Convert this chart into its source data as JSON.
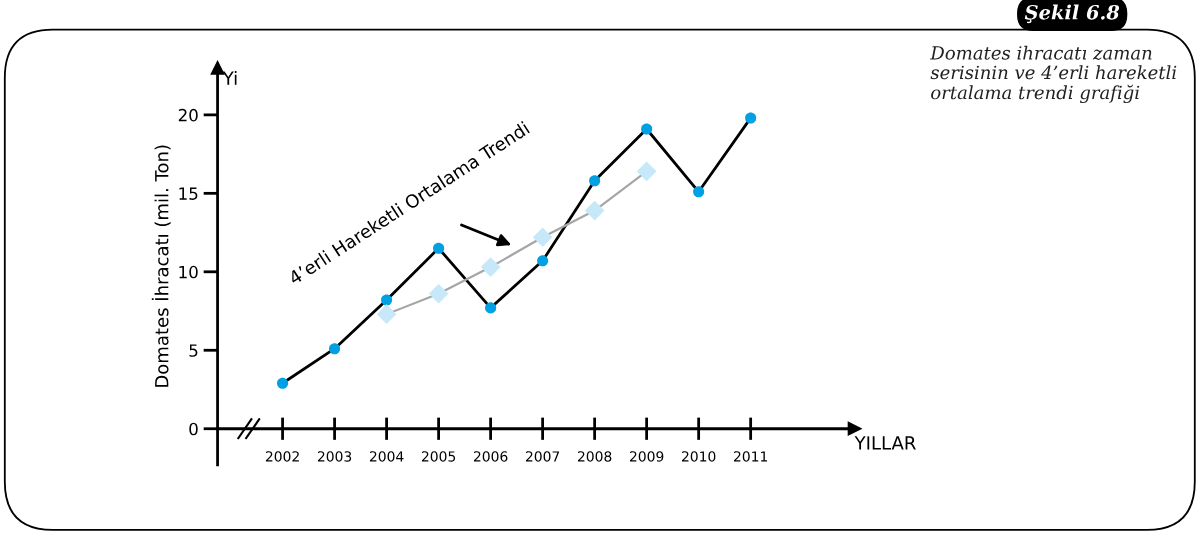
{
  "chart_data": {
    "type": "line",
    "ylabel": "Domates İhracatı (mil. Ton)",
    "xlabel": "YILLAR",
    "categories": [
      "2002",
      "2003",
      "2004",
      "2005",
      "2006",
      "2007",
      "2008",
      "2009",
      "2010",
      "2011"
    ],
    "series": [
      {
        "color": "#000000",
        "colors": [
          "#00a0e3",
          "#00a0e3",
          "#00a0e3",
          "#00a0e3",
          "#00a0e3",
          "#00a0e3",
          "#00a0e3",
          "#00a0e3",
          "#00a0e3",
          "#00a0e3"
        ],
        "marker": "circle",
        "values": [
          2.9,
          5.1,
          8.2,
          11.5,
          7.7,
          10.7,
          15.8,
          19.1,
          15.1,
          19.8
        ]
      },
      {
        "color": "#a6a6a6",
        "colors": [
          "#c6e8f8",
          "#c6e8f8",
          "#c6e8f8",
          "#c6e8f8",
          "#c6e8f8",
          "#c6e8f8",
          "#c6e8f8",
          "#c6e8f8",
          "#c6e8f8",
          "#c6e8f8"
        ],
        "marker": "diamond",
        "values": [
          null,
          null,
          7.3,
          8.6,
          10.3,
          12.2,
          13.9,
          16.4,
          null,
          null
        ]
      }
    ],
    "ylim": [
      -2.3,
      23
    ],
    "yticks": [
      0,
      5,
      10,
      15,
      20
    ],
    "grid": false,
    "legend": false,
    "annotations": [
      "Yi",
      "4’erli Hareketli Ortalama Trendi",
      "Şekil 6.8",
      "Domates ihracatı zaman serisinin ve 4’erli hareketli ortalama trendi grafiği"
    ]
  }
}
